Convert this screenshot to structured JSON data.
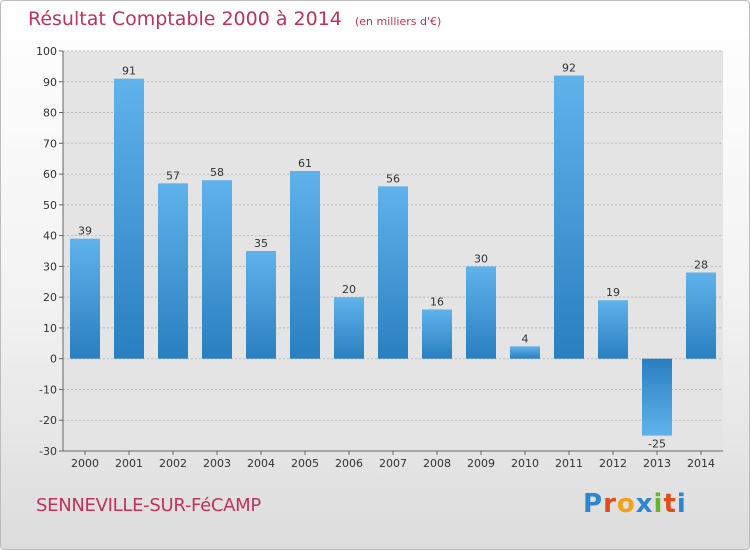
{
  "header": {
    "title": "Résultat Comptable 2000 à 2014",
    "subtitle": "(en milliers d'€)"
  },
  "footer": {
    "commune": "SENNEVILLE-SUR-FéCAMP",
    "logo_letters": [
      "P",
      "r",
      "o",
      "x",
      "i",
      "t",
      "i"
    ],
    "logo_colors": [
      "#2f86d0",
      "#e24b1c",
      "#f2a21a",
      "#2f86d0",
      "#6ab42d",
      "#e24b1c",
      "#2f86d0"
    ]
  },
  "colors": {
    "title": "#c0325c",
    "bar_light": "#5fb2ea",
    "bar_dark": "#2a7fc0",
    "grid": "#b9b9b9",
    "plot_bg": "#e4e4e4"
  },
  "chart_data": {
    "type": "bar",
    "title": "Résultat Comptable 2000 à 2014",
    "subtitle": "(en milliers d'€)",
    "xlabel": "",
    "ylabel": "",
    "ylim": [
      -30,
      100
    ],
    "yticks": [
      -30,
      -20,
      -10,
      0,
      10,
      20,
      30,
      40,
      50,
      60,
      70,
      80,
      90,
      100
    ],
    "grid": true,
    "categories": [
      "2000",
      "2001",
      "2002",
      "2003",
      "2004",
      "2005",
      "2006",
      "2007",
      "2008",
      "2009",
      "2010",
      "2011",
      "2012",
      "2013",
      "2014"
    ],
    "values": [
      39,
      91,
      57,
      58,
      35,
      61,
      20,
      56,
      16,
      30,
      4,
      92,
      19,
      -25,
      28
    ]
  }
}
